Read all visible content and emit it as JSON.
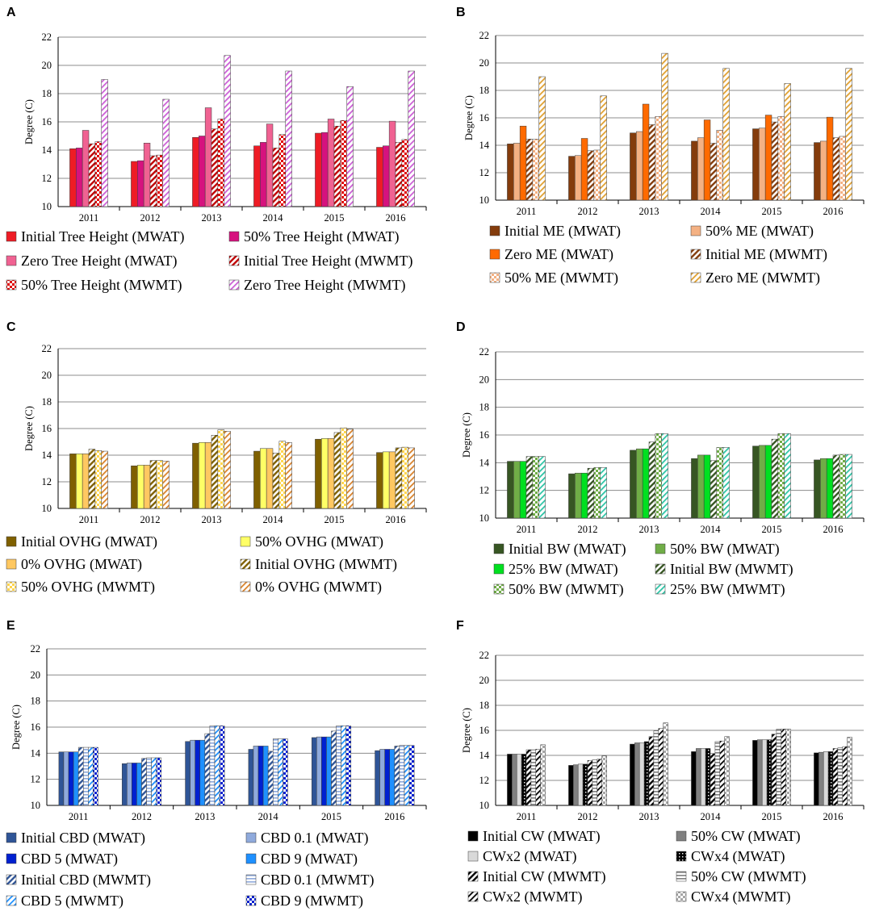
{
  "chart_data": [
    {
      "panel": "A",
      "type": "bar",
      "ylabel": "Degree (C)",
      "xlabel": "",
      "ylim": [
        10,
        22
      ],
      "yticks": [
        10,
        12,
        14,
        16,
        18,
        20,
        22
      ],
      "categories": [
        "2011",
        "2012",
        "2013",
        "2014",
        "2015",
        "2016"
      ],
      "legend_position": "bottom",
      "series": [
        {
          "name": "Initial Tree Height (MWAT)",
          "color": "#ee1c25",
          "pattern": "solid",
          "values": [
            14.1,
            13.2,
            14.9,
            14.3,
            15.2,
            14.2
          ]
        },
        {
          "name": "50% Tree Height (MWAT)",
          "color": "#d6127e",
          "pattern": "solid",
          "values": [
            14.15,
            13.25,
            15.0,
            14.55,
            15.25,
            14.3
          ]
        },
        {
          "name": "Zero Tree Height (MWAT)",
          "color": "#f06292",
          "pattern": "solid",
          "values": [
            15.4,
            14.5,
            17.0,
            15.85,
            16.2,
            16.05
          ]
        },
        {
          "name": "Initial Tree Height (MWMT)",
          "color": "#c00000",
          "pattern": "diag",
          "values": [
            14.45,
            13.6,
            15.5,
            14.15,
            15.7,
            14.55
          ]
        },
        {
          "name": "50% Tree Height (MWMT)",
          "color": "#e00000",
          "pattern": "checker",
          "values": [
            14.6,
            13.65,
            16.2,
            15.1,
            16.1,
            14.75
          ]
        },
        {
          "name": "Zero Tree Height (MWMT)",
          "color": "#cc5fd6",
          "pattern": "diag-light",
          "values": [
            19.0,
            17.6,
            20.7,
            19.6,
            18.5,
            19.6
          ]
        }
      ]
    },
    {
      "panel": "B",
      "type": "bar",
      "ylabel": "Degree (C)",
      "xlabel": "",
      "ylim": [
        10,
        22
      ],
      "yticks": [
        10,
        12,
        14,
        16,
        18,
        20,
        22
      ],
      "categories": [
        "2011",
        "2012",
        "2013",
        "2014",
        "2015",
        "2016"
      ],
      "legend_position": "bottom",
      "series": [
        {
          "name": "Initial ME (MWAT)",
          "color": "#843c0c",
          "pattern": "solid",
          "values": [
            14.1,
            13.2,
            14.9,
            14.3,
            15.2,
            14.2
          ]
        },
        {
          "name": "50% ME (MWAT)",
          "color": "#f4b183",
          "pattern": "solid",
          "values": [
            14.15,
            13.25,
            15.0,
            14.55,
            15.25,
            14.3
          ]
        },
        {
          "name": "Zero ME (MWAT)",
          "color": "#ff6a00",
          "pattern": "solid",
          "values": [
            15.4,
            14.5,
            17.0,
            15.85,
            16.2,
            16.05
          ]
        },
        {
          "name": "Initial ME (MWMT)",
          "color": "#843c0c",
          "pattern": "diag",
          "values": [
            14.45,
            13.6,
            15.5,
            14.15,
            15.7,
            14.55
          ]
        },
        {
          "name": "50% ME (MWMT)",
          "color": "#f4b183",
          "pattern": "checker",
          "values": [
            14.45,
            13.65,
            16.1,
            15.1,
            16.1,
            14.65
          ]
        },
        {
          "name": "Zero ME (MWMT)",
          "color": "#e0a030",
          "pattern": "diag-light",
          "values": [
            19.0,
            17.6,
            20.7,
            19.6,
            18.5,
            19.6
          ]
        }
      ]
    },
    {
      "panel": "C",
      "type": "bar",
      "ylabel": "Degree (C)",
      "xlabel": "",
      "ylim": [
        10,
        22
      ],
      "yticks": [
        10,
        12,
        14,
        16,
        18,
        20,
        22
      ],
      "categories": [
        "2011",
        "2012",
        "2013",
        "2014",
        "2015",
        "2016"
      ],
      "legend_position": "bottom",
      "series": [
        {
          "name": "Initial OVHG (MWAT)",
          "color": "#7f6000",
          "pattern": "solid",
          "values": [
            14.1,
            13.2,
            14.9,
            14.3,
            15.2,
            14.2
          ]
        },
        {
          "name": "50%  OVHG (MWAT)",
          "color": "#ffff66",
          "pattern": "solid",
          "values": [
            14.1,
            13.25,
            14.95,
            14.5,
            15.25,
            14.25
          ]
        },
        {
          "name": "0% OVHG (MWAT)",
          "color": "#ffc861",
          "pattern": "solid",
          "values": [
            14.1,
            13.25,
            14.95,
            14.5,
            15.25,
            14.25
          ]
        },
        {
          "name": "Initial OVHG (MWMT)",
          "color": "#7f6000",
          "pattern": "diag",
          "values": [
            14.45,
            13.6,
            15.5,
            14.15,
            15.7,
            14.55
          ]
        },
        {
          "name": "50%  OVHG (MWMT)",
          "color": "#ffd54f",
          "pattern": "checker",
          "values": [
            14.35,
            13.6,
            15.9,
            15.05,
            16.05,
            14.6
          ]
        },
        {
          "name": "0% OVHG (MWMT)",
          "color": "#d9822b",
          "pattern": "diag-light",
          "values": [
            14.3,
            13.55,
            15.8,
            14.95,
            15.95,
            14.55
          ]
        }
      ]
    },
    {
      "panel": "D",
      "type": "bar",
      "ylabel": "Degree (C)",
      "xlabel": "",
      "ylim": [
        10,
        22
      ],
      "yticks": [
        10,
        12,
        14,
        16,
        18,
        20,
        22
      ],
      "categories": [
        "2011",
        "2012",
        "2013",
        "2014",
        "2015",
        "2016"
      ],
      "legend_position": "bottom",
      "series": [
        {
          "name": "Initial BW (MWAT)",
          "color": "#375623",
          "pattern": "solid",
          "values": [
            14.1,
            13.2,
            14.9,
            14.3,
            15.2,
            14.2
          ]
        },
        {
          "name": "50% BW (MWAT)",
          "color": "#70ad47",
          "pattern": "solid",
          "values": [
            14.1,
            13.25,
            15.0,
            14.55,
            15.25,
            14.3
          ]
        },
        {
          "name": "25% BW (MWAT)",
          "color": "#00e020",
          "pattern": "solid",
          "values": [
            14.1,
            13.25,
            15.0,
            14.55,
            15.25,
            14.3
          ]
        },
        {
          "name": "Initial BW (MWMT)",
          "color": "#375623",
          "pattern": "diag",
          "values": [
            14.45,
            13.6,
            15.5,
            14.15,
            15.7,
            14.55
          ]
        },
        {
          "name": "50% BW (MWMT)",
          "color": "#70ad47",
          "pattern": "checker",
          "values": [
            14.45,
            13.65,
            16.1,
            15.1,
            16.1,
            14.6
          ]
        },
        {
          "name": "25% BW (MWMT)",
          "color": "#2ec4a6",
          "pattern": "diag-light",
          "values": [
            14.45,
            13.65,
            16.1,
            15.1,
            16.1,
            14.6
          ]
        }
      ]
    },
    {
      "panel": "E",
      "type": "bar",
      "ylabel": "Degree (C)",
      "xlabel": "",
      "ylim": [
        10,
        22
      ],
      "yticks": [
        10,
        12,
        14,
        16,
        18,
        20,
        22
      ],
      "categories": [
        "2011",
        "2012",
        "2013",
        "2014",
        "2015",
        "2016"
      ],
      "legend_position": "bottom",
      "series": [
        {
          "name": "Initial CBD (MWAT)",
          "color": "#2f5597",
          "pattern": "solid",
          "values": [
            14.1,
            13.2,
            14.9,
            14.3,
            15.2,
            14.2
          ]
        },
        {
          "name": "CBD 0.1 (MWAT)",
          "color": "#8faadc",
          "pattern": "solid",
          "values": [
            14.1,
            13.25,
            15.0,
            14.55,
            15.25,
            14.3
          ]
        },
        {
          "name": "CBD 5 (MWAT)",
          "color": "#0020d0",
          "pattern": "solid",
          "values": [
            14.1,
            13.25,
            15.0,
            14.55,
            15.25,
            14.3
          ]
        },
        {
          "name": "CBD 9 (MWAT)",
          "color": "#1e90ff",
          "pattern": "solid",
          "values": [
            14.1,
            13.25,
            15.0,
            14.55,
            15.25,
            14.3
          ]
        },
        {
          "name": "Initial CBD (MWMT)",
          "color": "#2f5597",
          "pattern": "diag",
          "values": [
            14.45,
            13.6,
            15.5,
            14.15,
            15.7,
            14.55
          ]
        },
        {
          "name": "CBD 0.1 (MWMT)",
          "color": "#8faadc",
          "pattern": "hlines",
          "values": [
            14.45,
            13.65,
            16.1,
            15.1,
            16.1,
            14.6
          ]
        },
        {
          "name": "CBD 5 (MWMT)",
          "color": "#1e90ff",
          "pattern": "diag-light",
          "values": [
            14.45,
            13.65,
            16.1,
            15.1,
            16.1,
            14.6
          ]
        },
        {
          "name": "CBD 9 (MWMT)",
          "color": "#0020d0",
          "pattern": "checker",
          "values": [
            14.45,
            13.65,
            16.1,
            15.1,
            16.1,
            14.6
          ]
        }
      ]
    },
    {
      "panel": "F",
      "type": "bar",
      "ylabel": "Degree (C)",
      "xlabel": "",
      "ylim": [
        10,
        22
      ],
      "yticks": [
        10,
        12,
        14,
        16,
        18,
        20,
        22
      ],
      "categories": [
        "2011",
        "2012",
        "2013",
        "2014",
        "2015",
        "2016"
      ],
      "legend_position": "bottom",
      "series": [
        {
          "name": "Initial CW (MWAT)",
          "color": "#000000",
          "pattern": "solid",
          "values": [
            14.1,
            13.2,
            14.9,
            14.3,
            15.2,
            14.2
          ]
        },
        {
          "name": "50% CW (MWAT)",
          "color": "#808080",
          "pattern": "solid",
          "values": [
            14.1,
            13.25,
            15.0,
            14.55,
            15.25,
            14.25
          ]
        },
        {
          "name": "CWx2 (MWAT)",
          "color": "#d9d9d9",
          "pattern": "solid",
          "values": [
            14.1,
            13.3,
            15.0,
            14.55,
            15.25,
            14.3
          ]
        },
        {
          "name": "CWx4 (MWAT)",
          "color": "#000000",
          "pattern": "dots",
          "values": [
            14.1,
            13.3,
            15.1,
            14.55,
            15.25,
            14.3
          ]
        },
        {
          "name": "Initial CW (MWMT)",
          "color": "#000000",
          "pattern": "diag",
          "values": [
            14.45,
            13.6,
            15.5,
            14.15,
            15.7,
            14.55
          ]
        },
        {
          "name": "50% CW (MWMT)",
          "color": "#808080",
          "pattern": "hlines",
          "values": [
            14.45,
            13.65,
            15.95,
            15.1,
            16.1,
            14.6
          ]
        },
        {
          "name": "CWx2 (MWMT)",
          "color": "#000000",
          "pattern": "diag-light",
          "values": [
            14.5,
            13.7,
            16.15,
            15.15,
            16.1,
            14.7
          ]
        },
        {
          "name": "CWx4 (MWMT)",
          "color": "#a6a6a6",
          "pattern": "checker",
          "values": [
            14.85,
            13.95,
            16.6,
            15.5,
            16.1,
            15.45
          ]
        }
      ]
    }
  ]
}
